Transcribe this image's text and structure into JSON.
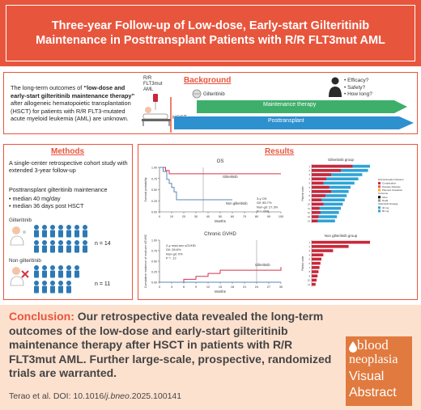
{
  "title": "Three-year Follow-up of Low-dose, Early-start Gilteritinib Maintenance in Posttransplant Patients with R/R FLT3mut AML",
  "background": {
    "heading": "Background",
    "text_pre": "The long-term outcomes of ",
    "text_bold": "“low-dose and early-start gilteritinib maintenance therapy”",
    "text_post": " after allogeneic hematopoietic transplantation (HSCT) for patients with R/R FLT3-mutated acute myeloid leukemia (AML) are unknown.",
    "patient_label_1": "R/R",
    "patient_label_2": "FLT3mut",
    "patient_label_3": "AML",
    "drug_label": "Gilteritinib",
    "hsct_label": "HSCT",
    "arrow_maintenance": "Maintenance therapy",
    "arrow_posttransplant": "Posttransplant",
    "questions": [
      "Efficacy?",
      "Safety?",
      "How long?"
    ]
  },
  "methods": {
    "heading": "Methods",
    "design": "A single-center retrospective cohort study with extended 3-year follow-up",
    "maint_title": "Posttransplant gilteritinib maintenance",
    "bullets": [
      "median 40 mg/day",
      "median 36 days post HSCT"
    ],
    "group_gilt": "Gilteritinib",
    "group_gilt_n": "n = 14",
    "group_non": "Non gilteritinib",
    "group_non_n": "n = 11"
  },
  "results": {
    "heading": "Results",
    "os_title": "OS",
    "os_ylabel": "Survival probability",
    "os_xlabel": "Months",
    "os_gilt_label": "Gilteritinib",
    "os_non_label": "Non gilteritinib",
    "os_stats": [
      "3-y OS",
      "Gil: 85.7%",
      "Non-gil: 27.3%",
      "P = .009"
    ],
    "gvhd_title": "Chronic GVHD",
    "gvhd_ylabel": "Cumulative incidence of mod-sev cGVHD",
    "gvhd_xlabel": "Months",
    "gvhd_gilt_label": "Gilteritinib",
    "gvhd_stats": [
      "2-y mod-sev cGVHD",
      "Gil: 28.6%",
      "Non-gil: 0%",
      "P = .12"
    ],
    "swim_gilt_title": "Gilteritinib group",
    "swim_non_title": "Non gilteritinib group",
    "swim_legend": [
      "Discontinuation Reason",
      "Complication",
      "Disease Relapse",
      "Planned Cessation",
      "Outcome",
      "Alive",
      "Dead",
      "Gilteritinib Dosage",
      "40 mg",
      "80 mg"
    ]
  },
  "chart_data": [
    {
      "type": "line",
      "title": "OS",
      "xlabel": "Months",
      "ylabel": "Survival probability",
      "x_ticks": [
        0,
        10,
        20,
        30,
        40,
        50,
        60,
        70,
        80,
        90,
        100
      ],
      "y_ticks": [
        0,
        0.25,
        0.5,
        0.75,
        1.0
      ],
      "xlim": [
        0,
        100
      ],
      "ylim": [
        0,
        1
      ],
      "series": [
        {
          "name": "Gilteritinib",
          "x": [
            0,
            5,
            8,
            12,
            100
          ],
          "y": [
            1.0,
            0.93,
            0.857,
            0.857,
            0.857
          ]
        },
        {
          "name": "Non gilteritinib",
          "x": [
            0,
            3,
            6,
            8,
            10,
            12,
            14,
            36,
            60
          ],
          "y": [
            1.0,
            0.91,
            0.73,
            0.64,
            0.55,
            0.45,
            0.273,
            0.273,
            0.273
          ]
        }
      ]
    },
    {
      "type": "line",
      "title": "Chronic GVHD",
      "xlabel": "Months",
      "ylabel": "Cumulative incidence of mod-sev cGVHD",
      "x_ticks": [
        0,
        3,
        6,
        9,
        12,
        15,
        18,
        21,
        24,
        27,
        30
      ],
      "y_ticks": [
        0,
        0.25,
        0.5,
        0.75,
        1.0
      ],
      "xlim": [
        0,
        30
      ],
      "ylim": [
        0,
        1
      ],
      "series": [
        {
          "name": "Gilteritinib",
          "x": [
            0,
            6,
            9,
            12,
            15,
            18,
            30
          ],
          "y": [
            0,
            0.07,
            0.14,
            0.21,
            0.286,
            0.286,
            0.36
          ]
        },
        {
          "name": "Non gilteritinib",
          "x": [
            0,
            30
          ],
          "y": [
            0,
            0
          ]
        }
      ]
    },
    {
      "type": "bar",
      "title": "Gilteritinib group",
      "ylabel": "Patient order",
      "categories": [
        1,
        2,
        3,
        4,
        5,
        6,
        7,
        8,
        9,
        10,
        11,
        12,
        13,
        14
      ],
      "values": [
        60,
        58,
        52,
        48,
        44,
        40,
        38,
        36,
        34,
        32,
        30,
        28,
        26,
        24
      ],
      "gilt_segment": [
        42,
        30,
        20,
        15,
        12,
        18,
        20,
        14,
        10,
        12,
        8,
        9,
        7,
        6
      ]
    },
    {
      "type": "bar",
      "title": "Non gilteritinib group",
      "ylabel": "Patient order",
      "categories": [
        1,
        2,
        3,
        4,
        5,
        6,
        7,
        8,
        9,
        10,
        11
      ],
      "values": [
        60,
        38,
        22,
        12,
        10,
        9,
        8,
        7,
        6,
        5,
        4
      ]
    }
  ],
  "conclusion": {
    "label": "Conclusion:",
    "text": " Our retrospective data revealed the long-term outcomes of the low-dose and early-start gilteritinib maintenance therapy after HSCT in patients with R/R FLT3mut AML. Further large-scale, prospective, randomized trials are warranted."
  },
  "citation": {
    "pre": "Terao et al. DOI: 10.1016/",
    "ital": "j.bneo",
    "post": ".2025.100141"
  },
  "brand": {
    "line1": "blood",
    "line2": "neoplasia",
    "line3": "Visual",
    "line4": "Abstract"
  },
  "colors": {
    "accent": "#e8553d",
    "gilt_line": "#d6334a",
    "non_line": "#5b86b8",
    "bar_gilt": "#c8283a",
    "bar_non": "#e84a6a",
    "bar_blue": "#2fa3d6",
    "arrow_green": "#3eaf6b",
    "arrow_blue": "#2d90cf"
  }
}
